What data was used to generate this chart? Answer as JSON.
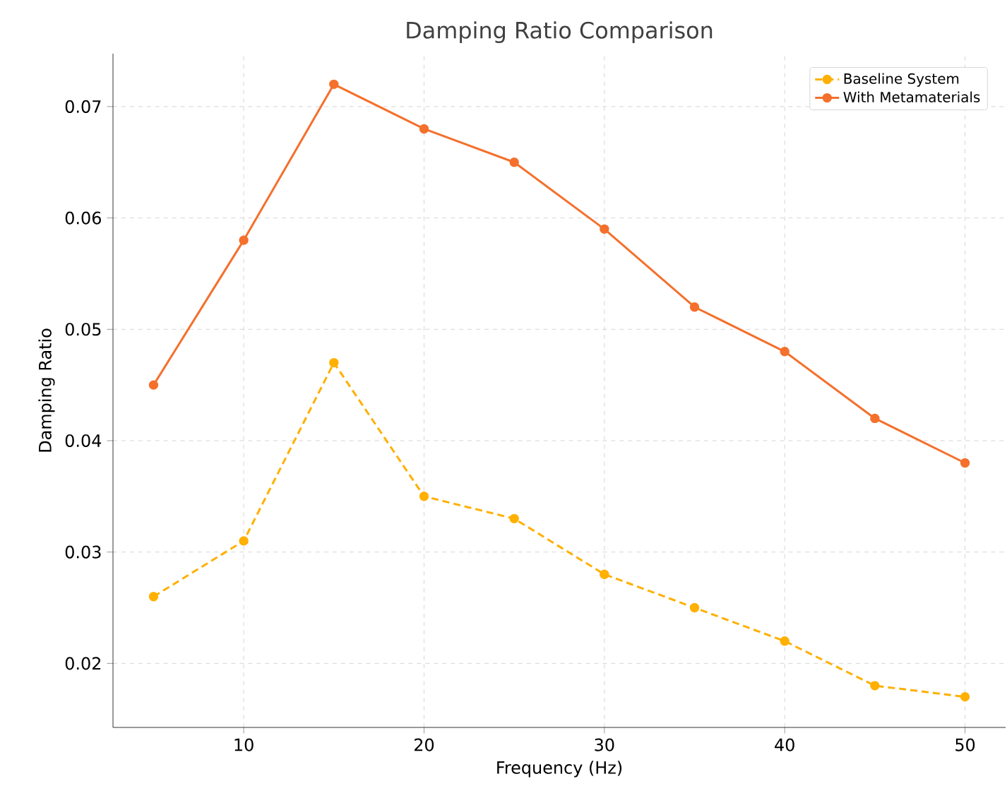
{
  "chart_data": {
    "type": "line",
    "title": "Damping Ratio Comparison",
    "xlabel": "Frequency (Hz)",
    "ylabel": "Damping Ratio",
    "x": [
      5,
      10,
      15,
      20,
      25,
      30,
      35,
      40,
      45,
      50
    ],
    "series": [
      {
        "name": "Baseline System",
        "color": "#ffb000",
        "line_style": "dashed",
        "values": [
          0.026,
          0.031,
          0.047,
          0.035,
          0.033,
          0.028,
          0.025,
          0.022,
          0.018,
          0.017
        ]
      },
      {
        "name": "With Metamaterials",
        "color": "#f4702c",
        "line_style": "solid",
        "values": [
          0.045,
          0.058,
          0.072,
          0.068,
          0.065,
          0.059,
          0.052,
          0.048,
          0.042,
          0.038
        ]
      }
    ],
    "xlim": [
      2.75,
      52.25
    ],
    "ylim": [
      0.01425,
      0.07475
    ],
    "xticks": [
      10,
      20,
      30,
      40,
      50
    ],
    "yticks": [
      0.02,
      0.03,
      0.04,
      0.05,
      0.06,
      0.07
    ],
    "grid": true,
    "legend": "top right",
    "marker": "circle"
  }
}
